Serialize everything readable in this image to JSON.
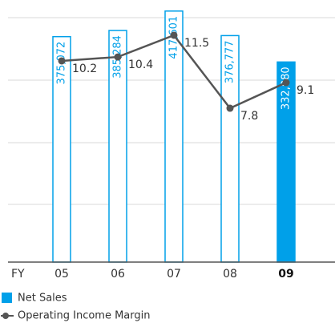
{
  "chart_data": {
    "type": "bar",
    "x_label": "FY",
    "categories": [
      "05",
      "06",
      "07",
      "08",
      "09"
    ],
    "ylim": [
      0,
      420000
    ],
    "y2lim": [
      0,
      12.8
    ],
    "series": [
      {
        "name": "Net Sales",
        "type": "bar",
        "color": "#00a0e9",
        "fills": [
          "#ffffff",
          "#ffffff",
          "#ffffff",
          "#ffffff",
          "#00a0e9"
        ],
        "values": [
          375072,
          385284,
          417601,
          376777,
          332880
        ],
        "value_labels": [
          "375,072",
          "385,284",
          "417,601",
          "376,777",
          "332,880"
        ]
      },
      {
        "name": "Operating Income Margin",
        "type": "line",
        "axis": "y2",
        "color": "#555555",
        "values": [
          10.2,
          10.4,
          11.5,
          7.8,
          9.1
        ]
      }
    ]
  }
}
